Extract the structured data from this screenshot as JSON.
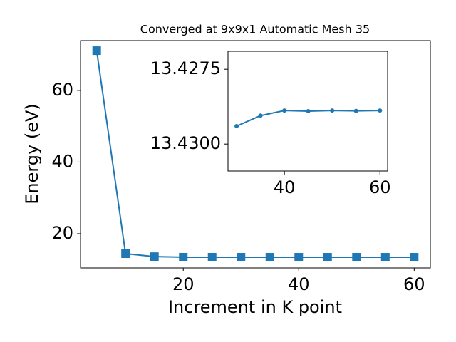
{
  "chart_data": [
    {
      "type": "line",
      "title": "Converged at 9x9x1 Automatic Mesh 35",
      "xlabel": "Increment in K point",
      "ylabel": "Energy (eV)",
      "x": [
        5,
        10,
        15,
        20,
        25,
        30,
        35,
        40,
        45,
        50,
        55,
        60
      ],
      "series": [
        {
          "color": "#1f77b4",
          "marker": "square",
          "values": [
            71.1,
            14.43,
            13.6,
            13.44,
            13.435,
            13.4294,
            13.42905,
            13.42888,
            13.4289,
            13.42888,
            13.42889,
            13.42888
          ]
        }
      ],
      "xlim": [
        2.2,
        62.8
      ],
      "ylim": [
        10.45,
        73.9
      ],
      "xticks": [
        20,
        40,
        60
      ],
      "yticks": [
        20,
        40,
        60
      ]
    },
    {
      "type": "line",
      "x": [
        30,
        35,
        40,
        45,
        50,
        55,
        60
      ],
      "series": [
        {
          "color": "#1f77b4",
          "marker": "circle",
          "values": [
            13.4294,
            13.42905,
            13.42888,
            13.4289,
            13.42888,
            13.42889,
            13.42888
          ]
        }
      ],
      "xlim": [
        28.2,
        61.6
      ],
      "ylim": [
        13.4309,
        13.4269
      ],
      "y_inverted": true,
      "xticks": [
        40,
        60
      ],
      "yticks": [
        13.4275,
        {
          "value": 13.43,
          "label": "13.4300"
        }
      ]
    }
  ]
}
